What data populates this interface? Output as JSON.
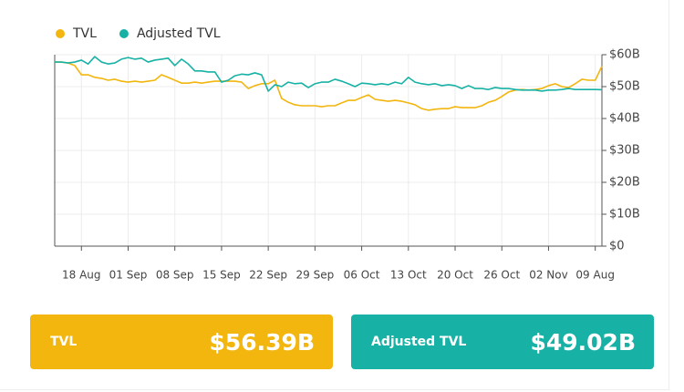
{
  "chart_data": {
    "type": "line",
    "categories": [
      null,
      null,
      null,
      null,
      "18 Aug",
      null,
      null,
      null,
      null,
      null,
      null,
      "01 Sep",
      null,
      null,
      null,
      null,
      null,
      null,
      "08 Sep",
      null,
      null,
      null,
      null,
      null,
      null,
      "15 Sep",
      null,
      null,
      null,
      null,
      null,
      null,
      "22 Sep",
      null,
      null,
      null,
      null,
      null,
      null,
      "29 Sep",
      null,
      null,
      null,
      null,
      null,
      null,
      "06 Oct",
      null,
      null,
      null,
      null,
      null,
      null,
      "13 Oct",
      null,
      null,
      null,
      null,
      null,
      null,
      "20 Oct",
      null,
      null,
      null,
      null,
      null,
      null,
      "26 Oct",
      null,
      null,
      null,
      null,
      null,
      null,
      "02 Nov",
      null,
      null,
      null,
      null,
      null,
      null,
      "09 Aug",
      null
    ],
    "series": [
      {
        "name": "TVL",
        "color": "#f2b60f",
        "values": [
          57.7,
          57.7,
          57.4,
          56.6,
          53.7,
          53.7,
          52.9,
          52.6,
          52,
          52.3,
          51.7,
          51.4,
          51.7,
          51.4,
          51.7,
          52,
          53.7,
          52.9,
          52,
          51.1,
          51.1,
          51.4,
          51.1,
          51.4,
          51.7,
          51.7,
          51.7,
          51.7,
          51.4,
          49.4,
          50.3,
          50.9,
          50.9,
          52,
          46.3,
          45.1,
          44.3,
          44,
          44,
          44,
          43.7,
          44,
          44,
          44.9,
          45.7,
          45.7,
          46.6,
          47.4,
          46,
          45.7,
          45.4,
          45.7,
          45.4,
          44.9,
          44.3,
          43.1,
          42.6,
          42.9,
          43.1,
          43.1,
          43.7,
          43.4,
          43.4,
          43.4,
          44,
          45.1,
          45.7,
          46.9,
          48.3,
          48.9,
          49.1,
          48.9,
          49.1,
          49.4,
          50.3,
          50.9,
          50,
          49.7,
          50.9,
          52.3,
          52,
          52,
          56.39
        ]
      },
      {
        "name": "Adjusted TVL",
        "color": "#17b2a5",
        "values": [
          57.7,
          57.7,
          57.4,
          57.7,
          58.3,
          57.1,
          59.4,
          57.7,
          57.1,
          57.4,
          58.6,
          59.1,
          58.6,
          58.9,
          57.7,
          58.3,
          58.6,
          58.9,
          56.6,
          58.6,
          57.1,
          54.9,
          54.9,
          54.6,
          54.6,
          51.4,
          52,
          53.4,
          53.9,
          53.7,
          54.3,
          53.7,
          48.6,
          50.6,
          50,
          51.4,
          50.9,
          51.1,
          49.7,
          50.9,
          51.4,
          51.4,
          52.3,
          51.7,
          50.9,
          50,
          51.1,
          50.9,
          50.6,
          50.9,
          50.6,
          51.4,
          50.9,
          52.9,
          51.4,
          50.9,
          50.6,
          50.9,
          50.3,
          50.6,
          50.3,
          49.4,
          50.3,
          49.4,
          49.4,
          49.1,
          49.7,
          49.4,
          49.4,
          49.1,
          48.9,
          48.9,
          48.9,
          48.6,
          48.9,
          48.9,
          49.1,
          49.4,
          49.1,
          49.1,
          49.1,
          49.1,
          49.02
        ]
      }
    ],
    "ylim": [
      0,
      60
    ],
    "yticks": [
      {
        "value": 0,
        "label": "$0"
      },
      {
        "value": 10,
        "label": "$10B"
      },
      {
        "value": 20,
        "label": "$20B"
      },
      {
        "value": 30,
        "label": "$30B"
      },
      {
        "value": 40,
        "label": "$40B"
      },
      {
        "value": 50,
        "label": "$50B"
      },
      {
        "value": 60,
        "label": "$60B"
      }
    ],
    "grid": true,
    "legend": "top-left"
  },
  "cards": [
    {
      "label": "TVL",
      "value": "$56.39B",
      "color": "#f2b60f"
    },
    {
      "label": "Adjusted TVL",
      "value": "$49.02B",
      "color": "#17b2a5"
    }
  ]
}
